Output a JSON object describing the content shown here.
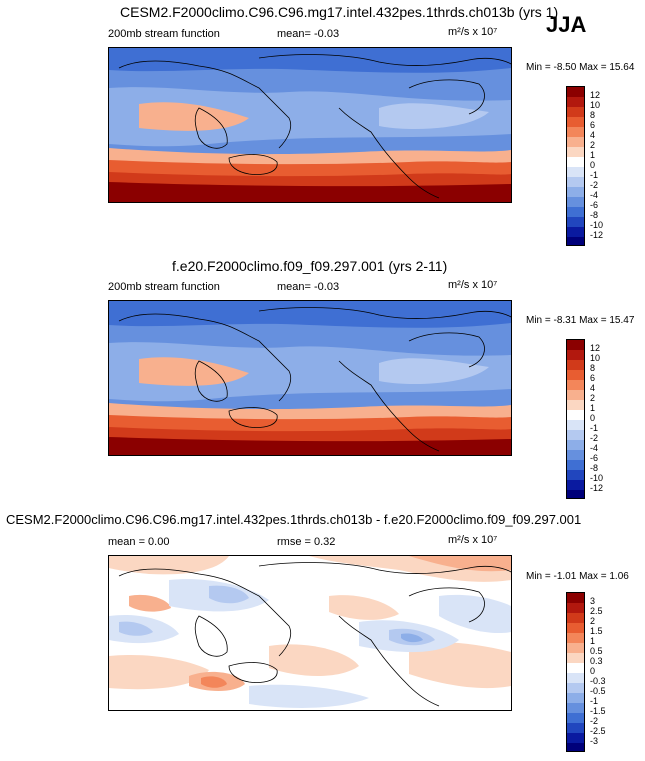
{
  "season": "JJA",
  "panels": [
    {
      "title": "CESM2.F2000climo.C96.C96.mg17.intel.432pes.1thrds.ch013b (yrs 1)",
      "left_label": "200mb stream function",
      "mid_label": "mean=  -0.03",
      "units": "m²/s x 10⁷",
      "minmax": "Min = -8.50  Max = 15.64",
      "levels": [
        "12",
        "10",
        "8",
        "6",
        "4",
        "2",
        "1",
        "0",
        "-1",
        "-2",
        "-4",
        "-6",
        "-8",
        "-10",
        "-12"
      ]
    },
    {
      "title": "f.e20.F2000climo.f09_f09.297.001 (yrs 2-11)",
      "left_label": "200mb stream function",
      "mid_label": "mean=  -0.03",
      "units": "m²/s x 10⁷",
      "minmax": "Min = -8.31  Max = 15.47",
      "levels": [
        "12",
        "10",
        "8",
        "6",
        "4",
        "2",
        "1",
        "0",
        "-1",
        "-2",
        "-4",
        "-6",
        "-8",
        "-10",
        "-12"
      ]
    },
    {
      "title": "CESM2.F2000climo.C96.C96.mg17.intel.432pes.1thrds.ch013b - f.e20.F2000climo.f09_f09.297.001",
      "left_label": "mean =  0.00",
      "mid_label": "rmse =  0.32",
      "units": "m²/s x 10⁷",
      "minmax": "Min = -1.01  Max = 1.06",
      "levels": [
        "3",
        "2.5",
        "2",
        "1.5",
        "1",
        "0.5",
        "0.3",
        "0",
        "-0.3",
        "-0.5",
        "-1",
        "-1.5",
        "-2",
        "-2.5",
        "-3"
      ]
    }
  ],
  "colors": {
    "ramp": [
      "#8b0000",
      "#b2180e",
      "#d13a1a",
      "#e85d31",
      "#f3865a",
      "#f8b08e",
      "#fbd7c2",
      "#ffffff",
      "#d9e4f7",
      "#b4c9f0",
      "#8daee8",
      "#6690de",
      "#3f6fd3",
      "#2146be",
      "#0a1aa0",
      "#00007a"
    ]
  },
  "map_icon": "world-map-contours"
}
